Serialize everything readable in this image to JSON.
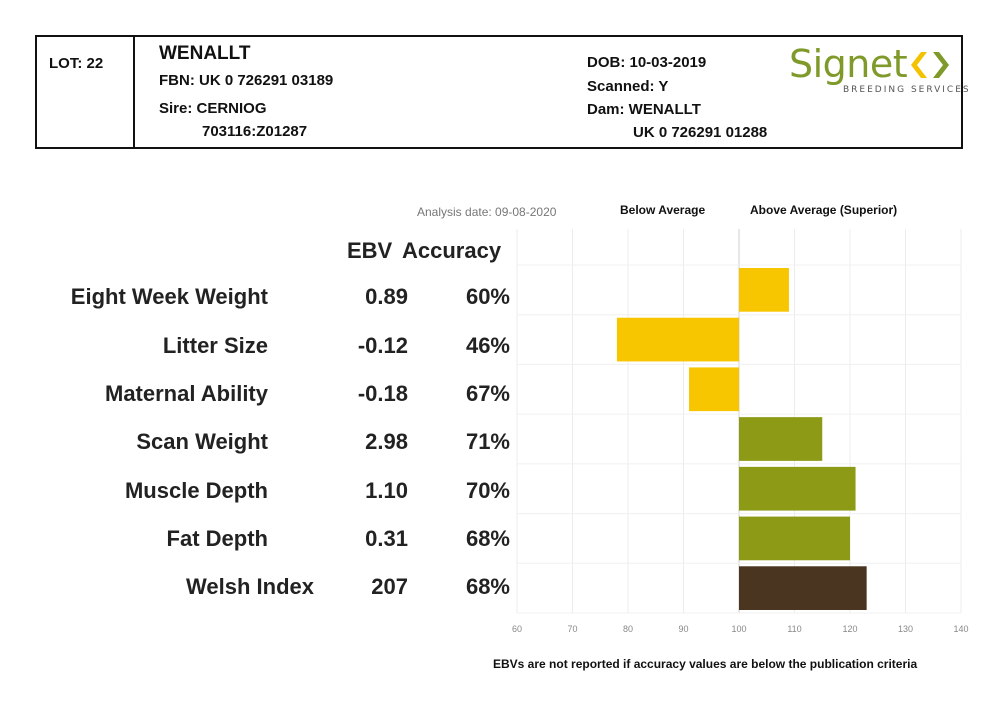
{
  "header": {
    "lot": "LOT: 22",
    "name": "WENALLT",
    "fbn": "FBN: UK 0 726291 03189",
    "sire": "Sire: CERNIOG",
    "sire_id": "703116:Z01287",
    "dob": "DOB: 10-03-2019",
    "scanned": "Scanned: Y",
    "dam": "Dam: WENALLT",
    "dam_id": "UK 0 726291 01288"
  },
  "logo": {
    "word": "Signet",
    "sub": "BREEDING SERVICES",
    "colors": {
      "word": "#7f9a2a",
      "left_chevron": "#f3c200",
      "right_chevron": "#7f9a2a"
    }
  },
  "analysis_date": "Analysis date: 09-08-2020",
  "legend": {
    "below": "Below Average",
    "above": "Above Average (Superior)"
  },
  "columns": {
    "ebv": "EBV",
    "accuracy": "Accuracy"
  },
  "traits": [
    {
      "label": "Eight Week Weight",
      "ebv": "0.89",
      "accuracy": "60%"
    },
    {
      "label": "Litter Size",
      "ebv": "-0.12",
      "accuracy": "46%"
    },
    {
      "label": "Maternal Ability",
      "ebv": "-0.18",
      "accuracy": "67%"
    },
    {
      "label": "Scan Weight",
      "ebv": "2.98",
      "accuracy": "71%"
    },
    {
      "label": "Muscle Depth",
      "ebv": "1.10",
      "accuracy": "70%"
    },
    {
      "label": "Fat Depth",
      "ebv": "0.31",
      "accuracy": "68%"
    },
    {
      "label": "Welsh Index",
      "ebv": "207",
      "accuracy": "68%"
    }
  ],
  "footnote": "EBVs are not reported if accuracy values are below the publication criteria",
  "chart_data": {
    "type": "bar",
    "orientation": "horizontal",
    "baseline": 100,
    "categories": [
      "Eight Week Weight",
      "Litter Size",
      "Maternal Ability",
      "Scan Weight",
      "Muscle Depth",
      "Fat Depth",
      "Welsh Index"
    ],
    "values": [
      109,
      78,
      91,
      115,
      121,
      120,
      123
    ],
    "colors": [
      "#f7c600",
      "#f7c600",
      "#f7c600",
      "#8c9a15",
      "#8c9a15",
      "#8c9a15",
      "#4a3520"
    ],
    "xlim": [
      60,
      140
    ],
    "ticks": [
      "60",
      "70",
      "80",
      "90",
      "100",
      "110",
      "120",
      "130",
      "140"
    ],
    "grid": true
  }
}
